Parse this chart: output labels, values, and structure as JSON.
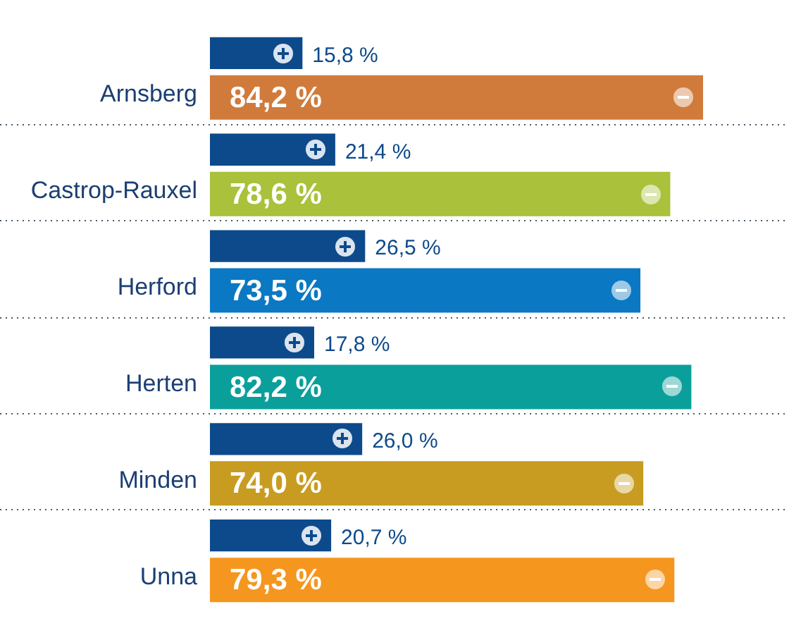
{
  "chart_data": {
    "type": "bar",
    "orientation": "horizontal",
    "categories": [
      "Arnsberg",
      "Castrop-Rauxel",
      "Herford",
      "Herten",
      "Minden",
      "Unna"
    ],
    "series": [
      {
        "color": "#0d4a8b",
        "values": [
          15.8,
          21.4,
          26.5,
          17.8,
          26.0,
          20.7
        ],
        "value_labels": [
          "15,8 %",
          "21,4 %",
          "26,5 %",
          "17,8 %",
          "26,0 %",
          "20,7 %"
        ]
      },
      {
        "colors": [
          "#d07b3b",
          "#a9c13b",
          "#0a78c3",
          "#0b9f9b",
          "#c89c21",
          "#f5961f"
        ],
        "values": [
          84.2,
          78.6,
          73.5,
          82.2,
          74.0,
          79.3
        ],
        "value_labels": [
          "84,2 %",
          "78,6 %",
          "73,5 %",
          "82,2 %",
          "74,0 %",
          "79,3 %"
        ]
      }
    ],
    "grid": "y",
    "legend": false,
    "tick_labels": "y"
  }
}
